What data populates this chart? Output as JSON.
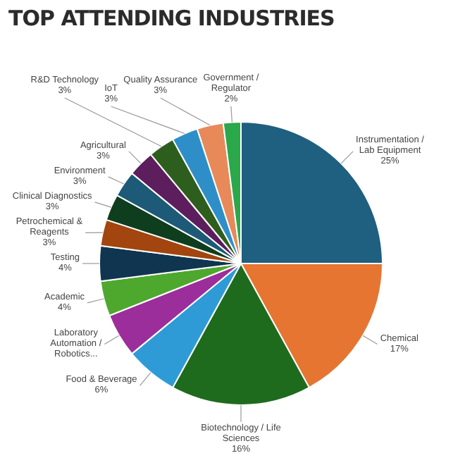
{
  "chart_data": {
    "type": "pie",
    "title": "TOP ATTENDING INDUSTRIES",
    "categories": [
      "Instrumentation / Lab Equipment",
      "Chemical",
      "Biotechnology / Life Sciences",
      "Food & Beverage",
      "Laboratory Automation / Robotics...",
      "Academic",
      "Testing",
      "Petrochemical & Reagents",
      "Clinical Diagnostics",
      "Environment",
      "Agricultural",
      "R&D Technology",
      "IoT",
      "Quality Assurance",
      "Government / Regulator"
    ],
    "values": [
      25,
      17,
      16,
      6,
      5,
      4,
      4,
      3,
      3,
      3,
      3,
      3,
      3,
      3,
      2
    ],
    "value_labels": [
      "25%",
      "17%",
      "16%",
      "6%",
      null,
      "4%",
      "4%",
      "3%",
      "3%",
      "3%",
      "3%",
      "3%",
      "3%",
      "3%",
      "2%"
    ],
    "colors": [
      "#1f5f7f",
      "#e67532",
      "#1e6b1e",
      "#2e9bd6",
      "#9b2e9b",
      "#4ea82e",
      "#0f3550",
      "#a3450f",
      "#0e3e1e",
      "#1d5a78",
      "#5c1e5c",
      "#2e5e1e",
      "#2e8fc8",
      "#e8895a",
      "#2aa84a"
    ],
    "legend": false
  }
}
